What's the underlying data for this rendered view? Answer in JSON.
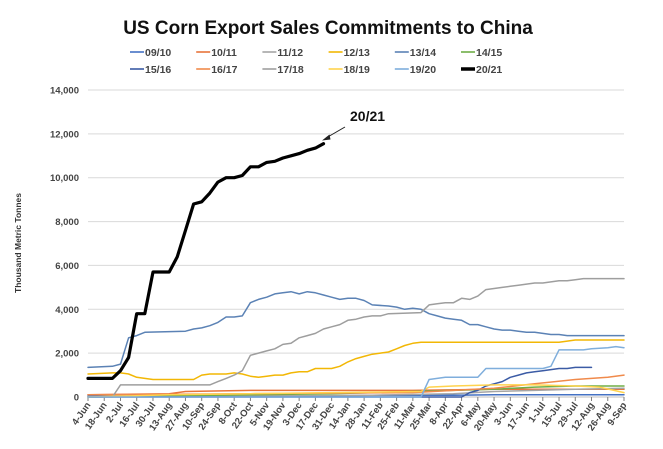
{
  "chart_data": {
    "type": "line",
    "title": "US Corn Export Sales Commitments to China",
    "xlabel": "",
    "ylabel": "Thousand Metric Tonnes",
    "ylim": [
      0,
      14000
    ],
    "yticks": [
      0,
      2000,
      4000,
      6000,
      8000,
      10000,
      12000,
      14000
    ],
    "ytick_labels": [
      "0",
      "2,000",
      "4,000",
      "6,000",
      "8,000",
      "10,000",
      "12,000",
      "14,000"
    ],
    "x_unit": "week index (weekly, starting 4-Jun)",
    "xlim": [
      0,
      66
    ],
    "xtick_labels": [
      "4-Jun",
      "18-Jun",
      "2-Jul",
      "16-Jul",
      "30-Jul",
      "13-Aug",
      "27-Aug",
      "10-Sep",
      "24-Sep",
      "8-Oct",
      "22-Oct",
      "5-Nov",
      "19-Nov",
      "3-Dec",
      "17-Dec",
      "31-Dec",
      "14-Jan",
      "28-Jan",
      "11-Feb",
      "25-Feb",
      "11-Mar",
      "25-Mar",
      "8-Apr",
      "22-Apr",
      "6-May",
      "20-May",
      "3-Jun",
      "17-Jun",
      "1-Jul",
      "15-Jul",
      "29-Jul",
      "12-Aug",
      "26-Aug",
      "9-Sep"
    ],
    "grid": "horizontal",
    "legend_position": "top",
    "annotations": [
      {
        "text": "20/21",
        "arrow_to_series": "20/21"
      }
    ],
    "series": [
      {
        "name": "09/10",
        "color": "#4472C4",
        "width": 1.5,
        "points": [
          [
            0,
            50
          ],
          [
            10,
            50
          ],
          [
            20,
            60
          ],
          [
            30,
            60
          ],
          [
            40,
            80
          ],
          [
            45,
            80
          ],
          [
            50,
            100
          ],
          [
            66,
            100
          ]
        ]
      },
      {
        "name": "10/11",
        "color": "#E8743B",
        "width": 1.5,
        "points": [
          [
            0,
            100
          ],
          [
            10,
            150
          ],
          [
            12,
            250
          ],
          [
            20,
            300
          ],
          [
            30,
            300
          ],
          [
            40,
            300
          ],
          [
            50,
            350
          ],
          [
            60,
            350
          ],
          [
            66,
            350
          ]
        ]
      },
      {
        "name": "11/12",
        "color": "#A5A5A5",
        "width": 1.5,
        "points": [
          [
            0,
            0
          ],
          [
            5,
            30
          ],
          [
            15,
            50
          ],
          [
            25,
            60
          ],
          [
            35,
            80
          ],
          [
            45,
            150
          ],
          [
            50,
            250
          ],
          [
            55,
            300
          ],
          [
            60,
            350
          ],
          [
            66,
            400
          ]
        ]
      },
      {
        "name": "12/13",
        "color": "#F2B705",
        "width": 1.5,
        "points": [
          [
            0,
            1050
          ],
          [
            3,
            1100
          ],
          [
            4,
            1100
          ],
          [
            5,
            1050
          ],
          [
            6,
            900
          ],
          [
            7,
            850
          ],
          [
            8,
            800
          ],
          [
            13,
            800
          ],
          [
            14,
            1000
          ],
          [
            15,
            1050
          ],
          [
            17,
            1050
          ],
          [
            18,
            1100
          ],
          [
            19,
            1050
          ],
          [
            20,
            950
          ],
          [
            21,
            900
          ],
          [
            22,
            950
          ],
          [
            23,
            1000
          ],
          [
            24,
            1000
          ],
          [
            25,
            1100
          ],
          [
            26,
            1150
          ],
          [
            27,
            1150
          ],
          [
            28,
            1300
          ],
          [
            30,
            1300
          ],
          [
            31,
            1400
          ],
          [
            32,
            1600
          ],
          [
            33,
            1750
          ],
          [
            34,
            1850
          ],
          [
            35,
            1950
          ],
          [
            36,
            2000
          ],
          [
            37,
            2050
          ],
          [
            38,
            2200
          ],
          [
            39,
            2350
          ],
          [
            40,
            2450
          ],
          [
            41,
            2500
          ],
          [
            58,
            2500
          ],
          [
            59,
            2550
          ],
          [
            60,
            2600
          ],
          [
            66,
            2600
          ]
        ]
      },
      {
        "name": "13/14",
        "color": "#5B82B5",
        "width": 1.5,
        "points": [
          [
            0,
            1350
          ],
          [
            3,
            1400
          ],
          [
            4,
            1500
          ],
          [
            5,
            2700
          ],
          [
            6,
            2800
          ],
          [
            7,
            2950
          ],
          [
            12,
            3000
          ],
          [
            13,
            3100
          ],
          [
            14,
            3150
          ],
          [
            15,
            3250
          ],
          [
            16,
            3400
          ],
          [
            17,
            3650
          ],
          [
            18,
            3650
          ],
          [
            19,
            3700
          ],
          [
            20,
            4300
          ],
          [
            21,
            4450
          ],
          [
            22,
            4550
          ],
          [
            23,
            4700
          ],
          [
            24,
            4750
          ],
          [
            25,
            4800
          ],
          [
            26,
            4700
          ],
          [
            27,
            4800
          ],
          [
            28,
            4750
          ],
          [
            29,
            4650
          ],
          [
            30,
            4550
          ],
          [
            31,
            4450
          ],
          [
            32,
            4500
          ],
          [
            33,
            4500
          ],
          [
            34,
            4400
          ],
          [
            35,
            4200
          ],
          [
            37,
            4150
          ],
          [
            38,
            4100
          ],
          [
            39,
            4000
          ],
          [
            40,
            4050
          ],
          [
            41,
            4000
          ],
          [
            42,
            3800
          ],
          [
            43,
            3700
          ],
          [
            44,
            3600
          ],
          [
            45,
            3550
          ],
          [
            46,
            3500
          ],
          [
            47,
            3300
          ],
          [
            48,
            3300
          ],
          [
            49,
            3200
          ],
          [
            50,
            3100
          ],
          [
            51,
            3050
          ],
          [
            52,
            3050
          ],
          [
            53,
            3000
          ],
          [
            54,
            2950
          ],
          [
            55,
            2950
          ],
          [
            56,
            2900
          ],
          [
            57,
            2850
          ],
          [
            58,
            2850
          ],
          [
            59,
            2800
          ],
          [
            66,
            2800
          ]
        ]
      },
      {
        "name": "14/15",
        "color": "#70AD47",
        "width": 1.5,
        "points": [
          [
            0,
            0
          ],
          [
            10,
            50
          ],
          [
            20,
            100
          ],
          [
            30,
            150
          ],
          [
            40,
            250
          ],
          [
            45,
            300
          ],
          [
            50,
            350
          ],
          [
            55,
            450
          ],
          [
            60,
            500
          ],
          [
            66,
            500
          ]
        ]
      },
      {
        "name": "15/16",
        "color": "#3B5BA5",
        "width": 1.5,
        "points": [
          [
            0,
            0
          ],
          [
            46,
            0
          ],
          [
            47,
            200
          ],
          [
            48,
            300
          ],
          [
            49,
            500
          ],
          [
            50,
            600
          ],
          [
            51,
            700
          ],
          [
            52,
            900
          ],
          [
            53,
            1000
          ],
          [
            54,
            1100
          ],
          [
            55,
            1150
          ],
          [
            56,
            1200
          ],
          [
            57,
            1250
          ],
          [
            58,
            1300
          ],
          [
            59,
            1300
          ],
          [
            60,
            1350
          ],
          [
            62,
            1350
          ]
        ]
      },
      {
        "name": "16/17",
        "color": "#F08A4B",
        "width": 1.5,
        "points": [
          [
            0,
            100
          ],
          [
            20,
            150
          ],
          [
            40,
            200
          ],
          [
            45,
            300
          ],
          [
            50,
            400
          ],
          [
            55,
            600
          ],
          [
            60,
            800
          ],
          [
            64,
            900
          ],
          [
            66,
            1000
          ]
        ]
      },
      {
        "name": "17/18",
        "color": "#9E9E9E",
        "width": 1.5,
        "points": [
          [
            0,
            0
          ],
          [
            3,
            0
          ],
          [
            4,
            550
          ],
          [
            15,
            550
          ],
          [
            16,
            700
          ],
          [
            17,
            850
          ],
          [
            18,
            1000
          ],
          [
            19,
            1200
          ],
          [
            20,
            1900
          ],
          [
            21,
            2000
          ],
          [
            22,
            2100
          ],
          [
            23,
            2200
          ],
          [
            24,
            2400
          ],
          [
            25,
            2450
          ],
          [
            26,
            2700
          ],
          [
            27,
            2800
          ],
          [
            28,
            2900
          ],
          [
            29,
            3100
          ],
          [
            30,
            3200
          ],
          [
            31,
            3300
          ],
          [
            32,
            3500
          ],
          [
            33,
            3550
          ],
          [
            34,
            3650
          ],
          [
            35,
            3700
          ],
          [
            36,
            3700
          ],
          [
            37,
            3800
          ],
          [
            41,
            3850
          ],
          [
            42,
            4200
          ],
          [
            43,
            4250
          ],
          [
            44,
            4300
          ],
          [
            45,
            4300
          ],
          [
            46,
            4500
          ],
          [
            47,
            4450
          ],
          [
            48,
            4600
          ],
          [
            49,
            4900
          ],
          [
            50,
            4950
          ],
          [
            51,
            5000
          ],
          [
            52,
            5050
          ],
          [
            53,
            5100
          ],
          [
            54,
            5150
          ],
          [
            55,
            5200
          ],
          [
            56,
            5200
          ],
          [
            57,
            5250
          ],
          [
            58,
            5300
          ],
          [
            59,
            5300
          ],
          [
            60,
            5350
          ],
          [
            61,
            5400
          ],
          [
            66,
            5400
          ]
        ]
      },
      {
        "name": "18/19",
        "color": "#FFD34E",
        "width": 1.5,
        "points": [
          [
            0,
            0
          ],
          [
            10,
            100
          ],
          [
            20,
            150
          ],
          [
            30,
            200
          ],
          [
            41,
            250
          ],
          [
            42,
            450
          ],
          [
            45,
            500
          ],
          [
            50,
            550
          ],
          [
            55,
            550
          ],
          [
            60,
            500
          ],
          [
            63,
            450
          ],
          [
            66,
            200
          ]
        ]
      },
      {
        "name": "19/20",
        "color": "#7FAEDC",
        "width": 1.5,
        "points": [
          [
            0,
            0
          ],
          [
            41,
            0
          ],
          [
            42,
            800
          ],
          [
            43,
            850
          ],
          [
            44,
            900
          ],
          [
            48,
            900
          ],
          [
            49,
            1300
          ],
          [
            56,
            1300
          ],
          [
            57,
            1400
          ],
          [
            58,
            2150
          ],
          [
            61,
            2150
          ],
          [
            62,
            2200
          ],
          [
            64,
            2250
          ],
          [
            65,
            2300
          ],
          [
            66,
            2250
          ]
        ]
      },
      {
        "name": "20/21",
        "color": "#000000",
        "width": 3.2,
        "points": [
          [
            0,
            850
          ],
          [
            3,
            850
          ],
          [
            4,
            1200
          ],
          [
            5,
            1800
          ],
          [
            6,
            3800
          ],
          [
            7,
            3800
          ],
          [
            8,
            5700
          ],
          [
            10,
            5700
          ],
          [
            11,
            6400
          ],
          [
            12,
            7600
          ],
          [
            13,
            8800
          ],
          [
            14,
            8900
          ],
          [
            15,
            9300
          ],
          [
            16,
            9800
          ],
          [
            17,
            10000
          ],
          [
            18,
            10000
          ],
          [
            19,
            10100
          ],
          [
            20,
            10500
          ],
          [
            21,
            10500
          ],
          [
            22,
            10700
          ],
          [
            23,
            10750
          ],
          [
            24,
            10900
          ],
          [
            25,
            11000
          ],
          [
            26,
            11100
          ],
          [
            27,
            11250
          ],
          [
            28,
            11350
          ],
          [
            29,
            11550
          ]
        ]
      }
    ]
  }
}
